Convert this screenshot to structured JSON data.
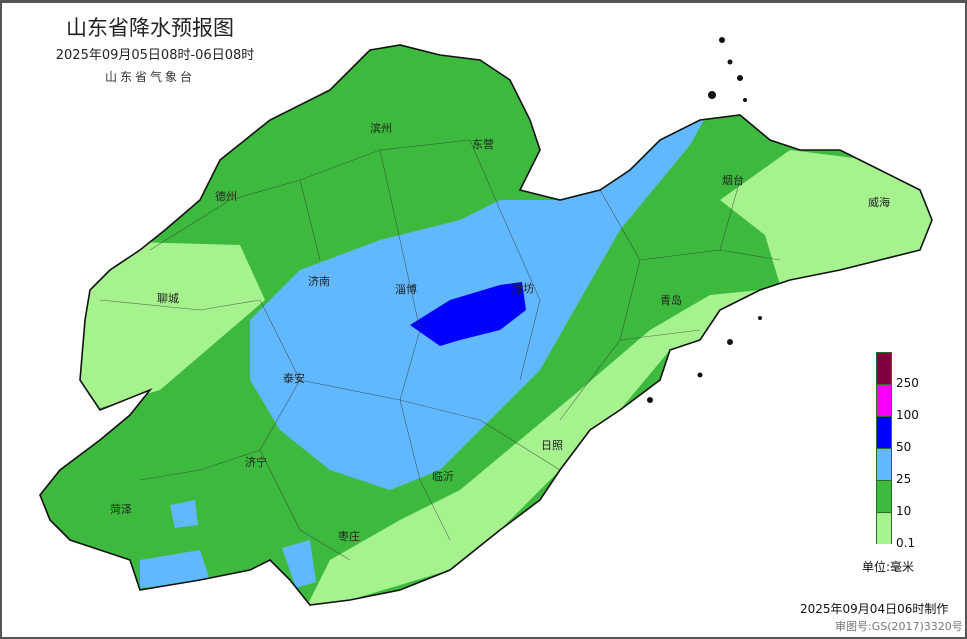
{
  "header": {
    "title": "山东省降水预报图",
    "subtitle": "2025年09月05日08时-06日08时",
    "organization": "山东省气象台"
  },
  "map": {
    "cities": [
      {
        "name": "滨州"
      },
      {
        "name": "东营"
      },
      {
        "name": "德州"
      },
      {
        "name": "烟台"
      },
      {
        "name": "威海"
      },
      {
        "name": "聊城"
      },
      {
        "name": "济南"
      },
      {
        "name": "淄博"
      },
      {
        "name": "潍坊"
      },
      {
        "name": "青岛"
      },
      {
        "name": "泰安"
      },
      {
        "name": "日照"
      },
      {
        "name": "济宁"
      },
      {
        "name": "临沂"
      },
      {
        "name": "菏泽"
      },
      {
        "name": "枣庄"
      }
    ],
    "colors": {
      "0.1-10": "#a6f28f",
      "10-25": "#3dba3d",
      "25-50": "#61b8ff",
      "50-100": "#0000fe",
      "100-250": "#fa00fa",
      "250+": "#800040"
    }
  },
  "legend": {
    "labels": [
      "250",
      "100",
      "50",
      "25",
      "10",
      "0.1"
    ],
    "colors": [
      "#800040",
      "#fa00fa",
      "#0000fe",
      "#61b8ff",
      "#3dba3d",
      "#a6f28f"
    ],
    "unit": "单位:毫米"
  },
  "footer": {
    "made": "2025年09月04日06时制作",
    "approval": "审图号:GS(2017)3320号"
  }
}
